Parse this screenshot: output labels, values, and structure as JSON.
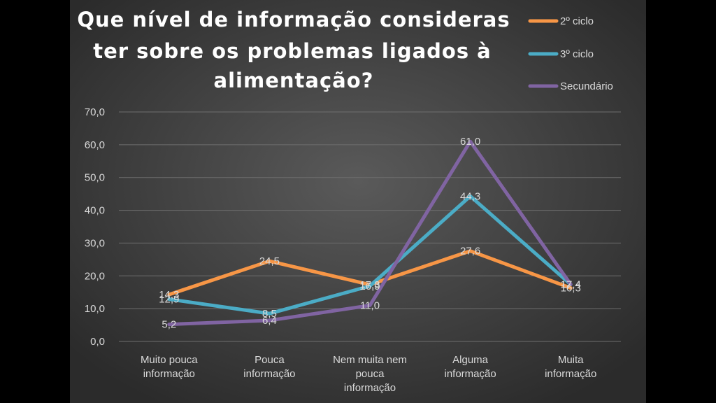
{
  "chart_data": {
    "type": "line",
    "title": "Que nível de informação consideras ter sobre os problemas ligados à alimentação?",
    "title_lines": [
      "Que nível de informação consideras",
      "ter sobre os problemas ligados à",
      "alimentação?"
    ],
    "categories": [
      [
        "Muito pouca",
        "informação"
      ],
      [
        "Pouca",
        "informação"
      ],
      [
        "Nem muita nem",
        "pouca",
        "informação"
      ],
      [
        "Alguma",
        "informação"
      ],
      [
        "Muita",
        "informação"
      ]
    ],
    "y_ticks": [
      "0,0",
      "10,0",
      "20,0",
      "30,0",
      "40,0",
      "50,0",
      "60,0",
      "70,0"
    ],
    "ylim": [
      0,
      70
    ],
    "grid": true,
    "legend_position": "top-right",
    "series": [
      {
        "name": "2º ciclo",
        "color": "#f79646",
        "values": [
          14.3,
          24.5,
          17.3,
          27.6,
          16.3
        ],
        "labels": [
          "14,3",
          "24,5",
          "17,3",
          "27,6",
          "16,3"
        ]
      },
      {
        "name": "3º ciclo",
        "color": "#4bacc6",
        "values": [
          12.9,
          8.5,
          16.9,
          44.3,
          17.4
        ],
        "labels": [
          "12,9",
          "8,5",
          "16,9",
          "44,3",
          "17,4"
        ]
      },
      {
        "name": "Secundário",
        "color": "#8064a2",
        "values": [
          5.2,
          6.4,
          11.0,
          61.0,
          17.4
        ],
        "labels": [
          "5,2",
          "6,4",
          "11,0",
          "61,0",
          "17,4"
        ]
      }
    ]
  }
}
